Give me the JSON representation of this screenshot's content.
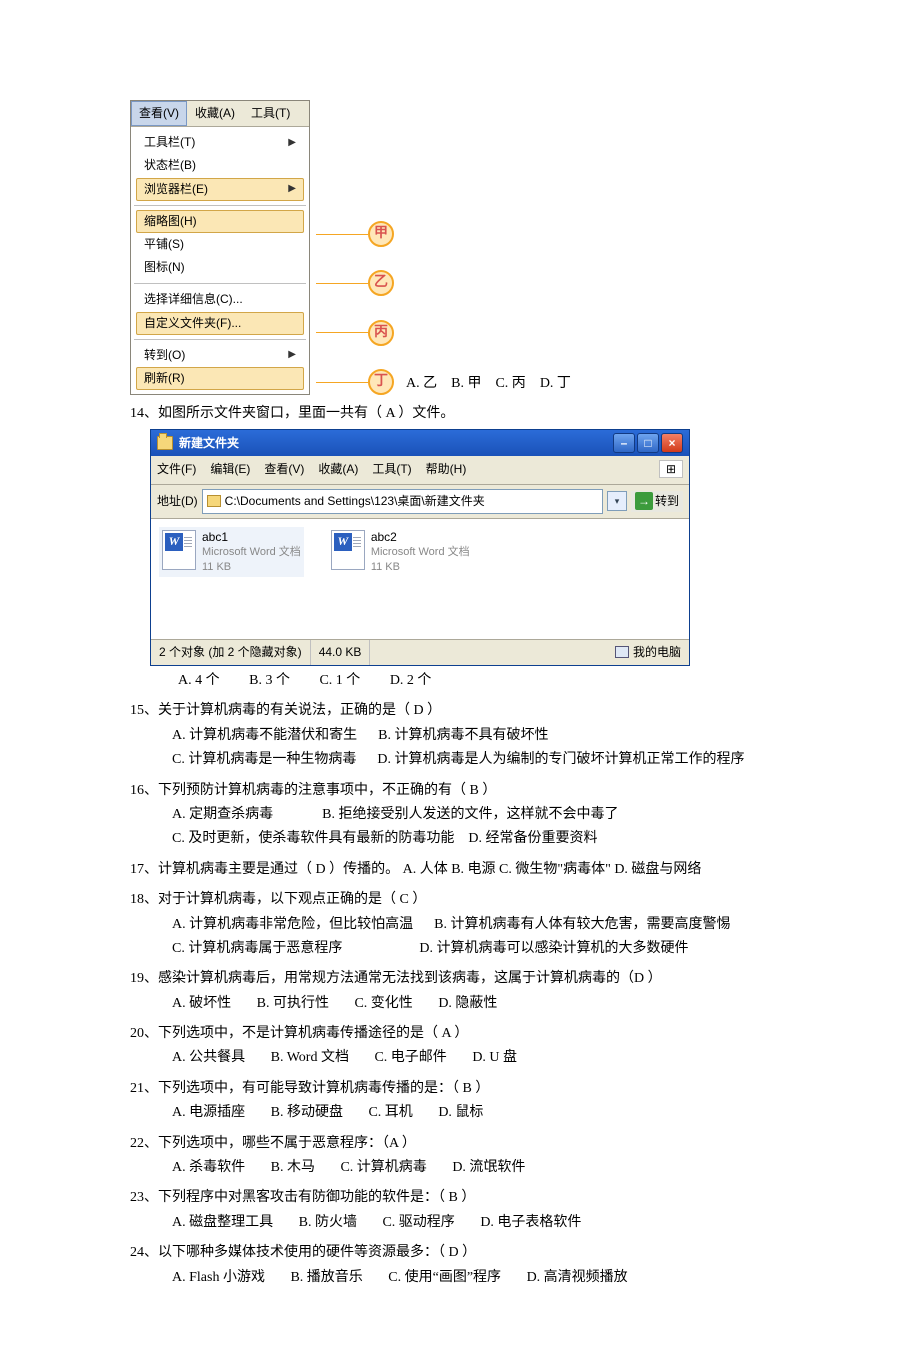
{
  "viewmenu": {
    "menubar": {
      "view": "查看(V)",
      "fav": "收藏(A)",
      "tools": "工具(T)"
    },
    "items": {
      "toolbar": "工具栏(T)",
      "status": "状态栏(B)",
      "browser": "浏览器栏(E)",
      "thumb": "缩略图(H)",
      "tile": "平铺(S)",
      "icons": "图标(N)",
      "details": "选择详细信息(C)...",
      "custom": "自定义文件夹(F)...",
      "goto": "转到(O)",
      "refresh": "刷新(R)"
    },
    "annot": {
      "jia": "甲",
      "yi": "乙",
      "bing": "丙",
      "ding": "丁"
    },
    "choices": {
      "a": "A. 乙",
      "b": "B. 甲",
      "c": "C. 丙",
      "d": "D. 丁"
    }
  },
  "q14": {
    "stem": "14、如图所示文件夹窗口，里面一共有（  A  ）文件。",
    "explorer": {
      "title": "新建文件夹",
      "menu": {
        "file": "文件(F)",
        "edit": "编辑(E)",
        "view": "查看(V)",
        "fav": "收藏(A)",
        "tools": "工具(T)",
        "help": "帮助(H)"
      },
      "addr_lbl": "地址(D)",
      "addr": "C:\\Documents and Settings\\123\\桌面\\新建文件夹",
      "go": "转到",
      "files": [
        {
          "name": "abc1",
          "type": "Microsoft Word 文档",
          "size": "11 KB"
        },
        {
          "name": "abc2",
          "type": "Microsoft Word 文档",
          "size": "11 KB"
        }
      ],
      "status_left": "2 个对象 (加 2 个隐藏对象)",
      "status_mid": "44.0 KB",
      "status_right": "我的电脑"
    },
    "opts": {
      "a": "A. 4 个",
      "b": "B. 3 个",
      "c": "C. 1 个",
      "d": "D. 2 个"
    }
  },
  "q15": {
    "stem": "15、关于计算机病毒的有关说法，正确的是（  D   ）",
    "a": "A. 计算机病毒不能潜伏和寄生",
    "b": "B. 计算机病毒不具有破坏性",
    "c": "C. 计算机病毒是一种生物病毒",
    "d": "D. 计算机病毒是人为编制的专门破坏计算机正常工作的程序"
  },
  "q16": {
    "stem": "16、下列预防计算机病毒的注意事项中，不正确的有（  B   ）",
    "a": "A. 定期查杀病毒",
    "b": "B. 拒绝接受别人发送的文件，这样就不会中毒了",
    "c": "C. 及时更新，使杀毒软件具有最新的防毒功能",
    "d": "D. 经常备份重要资料"
  },
  "q17": {
    "stem": "17、计算机病毒主要是通过（   D   ）传播的。    A. 人体  B. 电源   C. 微生物\"病毒体\"   D. 磁盘与网络"
  },
  "q18": {
    "stem": "18、对于计算机病毒，以下观点正确的是（ C    ）",
    "a": "A. 计算机病毒非常危险，但比较怕高温",
    "b": "B. 计算机病毒有人体有较大危害，需要高度警惕",
    "c": "C. 计算机病毒属于恶意程序",
    "d": "D. 计算机病毒可以感染计算机的大多数硬件"
  },
  "q19": {
    "stem": "19、感染计算机病毒后，用常规方法通常无法找到该病毒，这属于计算机病毒的（D    ）",
    "a": "A. 破坏性",
    "b": "B. 可执行性",
    "c": "C. 变化性",
    "d": "D. 隐蔽性"
  },
  "q20": {
    "stem": "20、下列选项中，不是计算机病毒传播途径的是（ A    ）",
    "a": "A. 公共餐具",
    "b": "B. Word 文档",
    "c": "C. 电子邮件",
    "d": "D. U 盘"
  },
  "q21": {
    "stem": "21、下列选项中，有可能导致计算机病毒传播的是：（ B     ）",
    "a": "A. 电源插座",
    "b": "B. 移动硬盘",
    "c": "C. 耳机",
    "d": "D. 鼠标"
  },
  "q22": {
    "stem": "22、下列选项中，哪些不属于恶意程序：（A      ）",
    "a": "A. 杀毒软件",
    "b": "B. 木马",
    "c": "C. 计算机病毒",
    "d": "D. 流氓软件"
  },
  "q23": {
    "stem": "23、下列程序中对黑客攻击有防御功能的软件是：（ B     ）",
    "a": "A. 磁盘整理工具",
    "b": "B. 防火墙",
    "c": "C. 驱动程序",
    "d": "D. 电子表格软件"
  },
  "q24": {
    "stem": "24、以下哪种多媒体技术使用的硬件等资源最多：（ D    ）",
    "a": "A. Flash 小游戏",
    "b": "B. 播放音乐",
    "c": "C. 使用“画图”程序",
    "d": "D. 高清视频播放"
  }
}
